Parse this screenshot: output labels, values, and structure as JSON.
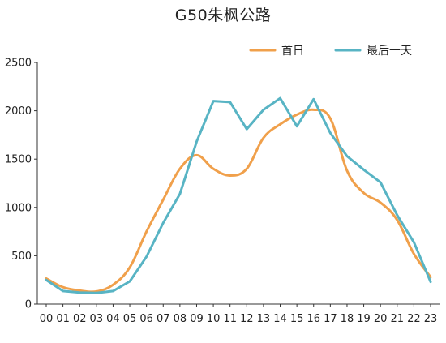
{
  "chart_data": {
    "type": "line",
    "title": "G50朱枫公路",
    "xlabel": "",
    "ylabel": "",
    "categories": [
      "00",
      "01",
      "02",
      "03",
      "04",
      "05",
      "06",
      "07",
      "08",
      "09",
      "10",
      "11",
      "12",
      "13",
      "14",
      "15",
      "16",
      "17",
      "18",
      "19",
      "20",
      "21",
      "22",
      "23"
    ],
    "ylim": [
      0,
      2500
    ],
    "yticks": [
      0,
      500,
      1000,
      1500,
      2000,
      2500
    ],
    "grid": false,
    "legend_position": "top-right",
    "series": [
      {
        "name": "首日",
        "color": "#F0A04B",
        "smooth": true,
        "values": [
          265,
          175,
          140,
          130,
          200,
          380,
          750,
          1080,
          1400,
          1540,
          1400,
          1330,
          1400,
          1720,
          1860,
          1960,
          2010,
          1920,
          1380,
          1150,
          1050,
          870,
          520,
          280
        ]
      },
      {
        "name": "最后一天",
        "color": "#58B4C4",
        "smooth": false,
        "values": [
          250,
          135,
          120,
          115,
          135,
          235,
          490,
          840,
          1140,
          1680,
          2100,
          2090,
          1810,
          2010,
          2130,
          1840,
          2120,
          1770,
          1530,
          1390,
          1260,
          920,
          640,
          230
        ]
      }
    ]
  }
}
